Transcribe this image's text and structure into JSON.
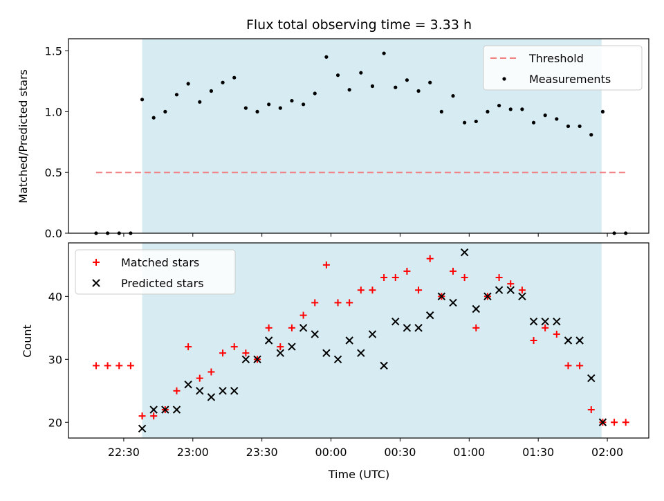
{
  "chart_data": {
    "title": "Flux total observing time = 3.33 h",
    "xlabel": "Time (UTC)",
    "x_ticks": [
      {
        "label": "22:30",
        "min": 0
      },
      {
        "label": "23:00",
        "min": 30
      },
      {
        "label": "23:30",
        "min": 60
      },
      {
        "label": "00:00",
        "min": 90
      },
      {
        "label": "00:30",
        "min": 120
      },
      {
        "label": "01:00",
        "min": 150
      },
      {
        "label": "01:30",
        "min": 180
      },
      {
        "label": "02:00",
        "min": 210
      }
    ],
    "xlim_min": [
      -24,
      228
    ],
    "observing_window_min": [
      8,
      207.5
    ],
    "times_min": [
      -12,
      -7,
      -2,
      3,
      8,
      13,
      18,
      23,
      28,
      33,
      38,
      43,
      48,
      53,
      58,
      63,
      68,
      73,
      78,
      83,
      88,
      93,
      98,
      103,
      108,
      113,
      118,
      123,
      128,
      133,
      138,
      143,
      148,
      153,
      158,
      163,
      168,
      173,
      178,
      183,
      188,
      193,
      198,
      203,
      208,
      213,
      218
    ],
    "panels": [
      {
        "type": "scatter",
        "ylabel": "Matched/Predicted stars",
        "ylim": [
          0,
          1.6
        ],
        "yticks": [
          0.0,
          0.5,
          1.0,
          1.5
        ],
        "ytick_labels": [
          "0.0",
          "0.5",
          "1.0",
          "1.5"
        ],
        "legend_position": "upper right",
        "threshold": {
          "name": "Threshold",
          "value": 0.5,
          "x_range": [
            -12,
            218
          ],
          "color": "#f08080"
        },
        "series": [
          {
            "name": "Measurements",
            "color": "#000000",
            "values": [
              0,
              0,
              0,
              0,
              1.1,
              0.95,
              1.0,
              1.14,
              1.23,
              1.08,
              1.17,
              1.24,
              1.28,
              1.03,
              1.0,
              1.06,
              1.03,
              1.09,
              1.06,
              1.15,
              1.45,
              1.3,
              1.18,
              1.32,
              1.21,
              1.48,
              1.2,
              1.26,
              1.17,
              1.24,
              1.0,
              1.13,
              0.91,
              0.92,
              1.0,
              1.05,
              1.02,
              1.02,
              0.91,
              0.97,
              0.94,
              0.88,
              0.88,
              0.81,
              1.0,
              0,
              0
            ]
          }
        ]
      },
      {
        "type": "scatter",
        "ylabel": "Count",
        "ylim": [
          17.5,
          48.5
        ],
        "yticks": [
          20,
          30,
          40
        ],
        "ytick_labels": [
          "20",
          "30",
          "40"
        ],
        "legend_position": "upper left",
        "series": [
          {
            "name": "Matched stars",
            "color": "#ff0000",
            "values": [
              29,
              29,
              29,
              29,
              21,
              21,
              22,
              25,
              32,
              27,
              28,
              31,
              32,
              31,
              30,
              35,
              32,
              35,
              37,
              39,
              45,
              39,
              39,
              41,
              41,
              43,
              43,
              44,
              41,
              46,
              40,
              44,
              43,
              35,
              40,
              43,
              42,
              41,
              33,
              35,
              34,
              29,
              29,
              22,
              20,
              20,
              20
            ]
          },
          {
            "name": "Predicted stars",
            "color": "#000000",
            "values": [
              null,
              null,
              null,
              null,
              19,
              22,
              22,
              22,
              26,
              25,
              24,
              25,
              25,
              30,
              30,
              33,
              31,
              32,
              35,
              34,
              31,
              30,
              33,
              31,
              34,
              29,
              36,
              35,
              35,
              37,
              40,
              39,
              47,
              38,
              40,
              41,
              41,
              40,
              36,
              36,
              36,
              33,
              33,
              27,
              20,
              null,
              null
            ]
          }
        ]
      }
    ],
    "window_color": "#add8e6"
  }
}
